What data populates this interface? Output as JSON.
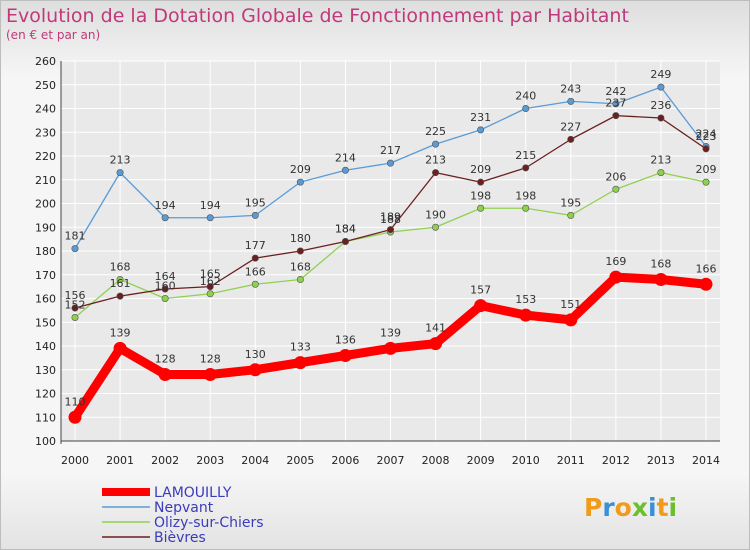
{
  "chart_data": {
    "type": "line",
    "title": "Evolution de la Dotation Globale de Fonctionnement par Habitant",
    "subtitle": "(en € et par an)",
    "xlabel": "",
    "ylabel": "",
    "ylim": [
      100,
      260
    ],
    "yticks": [
      100,
      110,
      120,
      130,
      140,
      150,
      160,
      170,
      180,
      190,
      200,
      210,
      220,
      230,
      240,
      250,
      260
    ],
    "x": [
      "2000",
      "2001",
      "2002",
      "2003",
      "2004",
      "2005",
      "2006",
      "2007",
      "2008",
      "2009",
      "2010",
      "2011",
      "2012",
      "2013",
      "2014"
    ],
    "grid": true,
    "legend_position": "bottom-left",
    "series": [
      {
        "name": "LAMOUILLY",
        "color": "#ff0000",
        "values": [
          110,
          139,
          128,
          128,
          130,
          133,
          136,
          139,
          141,
          157,
          153,
          151,
          169,
          168,
          166
        ]
      },
      {
        "name": "Nepvant",
        "color": "#5b9bd5",
        "values": [
          181,
          213,
          194,
          194,
          195,
          209,
          214,
          217,
          225,
          231,
          240,
          243,
          242,
          249,
          224
        ]
      },
      {
        "name": "Olizy-sur-Chiers",
        "color": "#8fd14f",
        "values": [
          152,
          168,
          160,
          162,
          166,
          168,
          184,
          188,
          190,
          198,
          198,
          195,
          206,
          213,
          209
        ]
      },
      {
        "name": "Bièvres",
        "color": "#6b1f1f",
        "values": [
          156,
          161,
          164,
          165,
          177,
          180,
          184,
          189,
          213,
          209,
          215,
          227,
          237,
          236,
          223
        ]
      }
    ]
  },
  "logo": {
    "text": "Proxiti"
  }
}
